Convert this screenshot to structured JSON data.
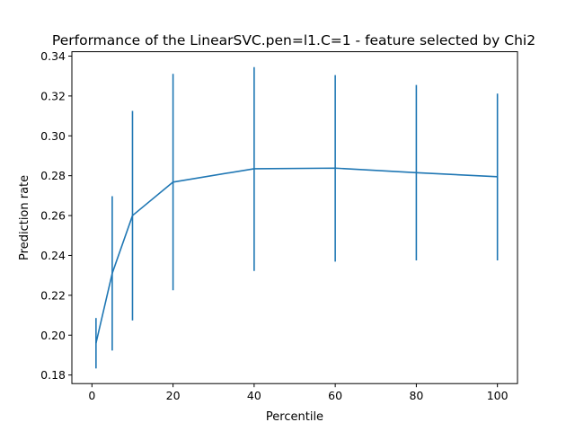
{
  "chart_data": {
    "type": "line",
    "title": "Performance of the LinearSVC.pen=l1.C=1 - feature selected by Chi2",
    "xlabel": "Percentile",
    "ylabel": "Prediction rate",
    "xlim": [
      -4.95,
      104.95
    ],
    "ylim": [
      0.1757,
      0.3422
    ],
    "x_ticks": [
      0,
      20,
      40,
      60,
      80,
      100
    ],
    "x_tick_labels": [
      "0",
      "20",
      "40",
      "60",
      "80",
      "100"
    ],
    "y_ticks": [
      0.18,
      0.2,
      0.22,
      0.24,
      0.26,
      0.28,
      0.3,
      0.32,
      0.34
    ],
    "y_tick_labels": [
      "0.18",
      "0.20",
      "0.22",
      "0.24",
      "0.26",
      "0.28",
      "0.30",
      "0.32",
      "0.34"
    ],
    "grid": false,
    "color": "#1f77b4",
    "series": [
      {
        "x": [
          1,
          5,
          10,
          20,
          40,
          60,
          80,
          100
        ],
        "y": [
          0.196,
          0.231,
          0.26,
          0.2768,
          0.2835,
          0.2838,
          0.2815,
          0.2795
        ],
        "yerr_low": [
          0.1833,
          0.1923,
          0.2074,
          0.2225,
          0.2322,
          0.2369,
          0.2375,
          0.2375
        ],
        "yerr_high": [
          0.2086,
          0.2697,
          0.3125,
          0.3311,
          0.3345,
          0.3305,
          0.3255,
          0.3212
        ]
      }
    ]
  }
}
